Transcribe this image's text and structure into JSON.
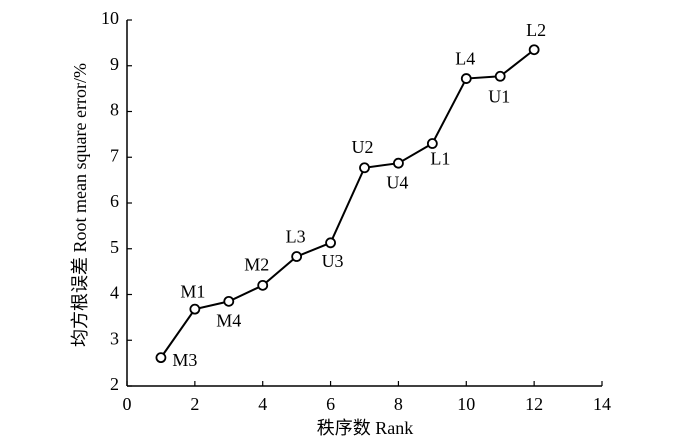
{
  "chart_data": {
    "type": "line",
    "x_label": "秩序数 Rank",
    "y_label": "均方根误差 Root mean square error/%",
    "x": [
      1,
      2,
      3,
      4,
      5,
      6,
      7,
      8,
      9,
      10,
      11,
      12
    ],
    "series": [
      {
        "color": "#000000",
        "values": [
          2.62,
          3.68,
          3.85,
          4.2,
          4.83,
          5.13,
          6.77,
          6.87,
          7.3,
          8.72,
          8.77,
          9.35
        ],
        "point_labels": [
          "M3",
          "M1",
          "M4",
          "M2",
          "L3",
          "U3",
          "U2",
          "U4",
          "L1",
          "L4",
          "U1",
          "L2"
        ]
      }
    ],
    "xlim": [
      0,
      14
    ],
    "xticks": [
      0,
      2,
      4,
      6,
      8,
      10,
      12,
      14
    ],
    "ylim": [
      2,
      10
    ],
    "yticks": [
      2,
      3,
      4,
      5,
      6,
      7,
      8,
      9,
      10
    ]
  }
}
